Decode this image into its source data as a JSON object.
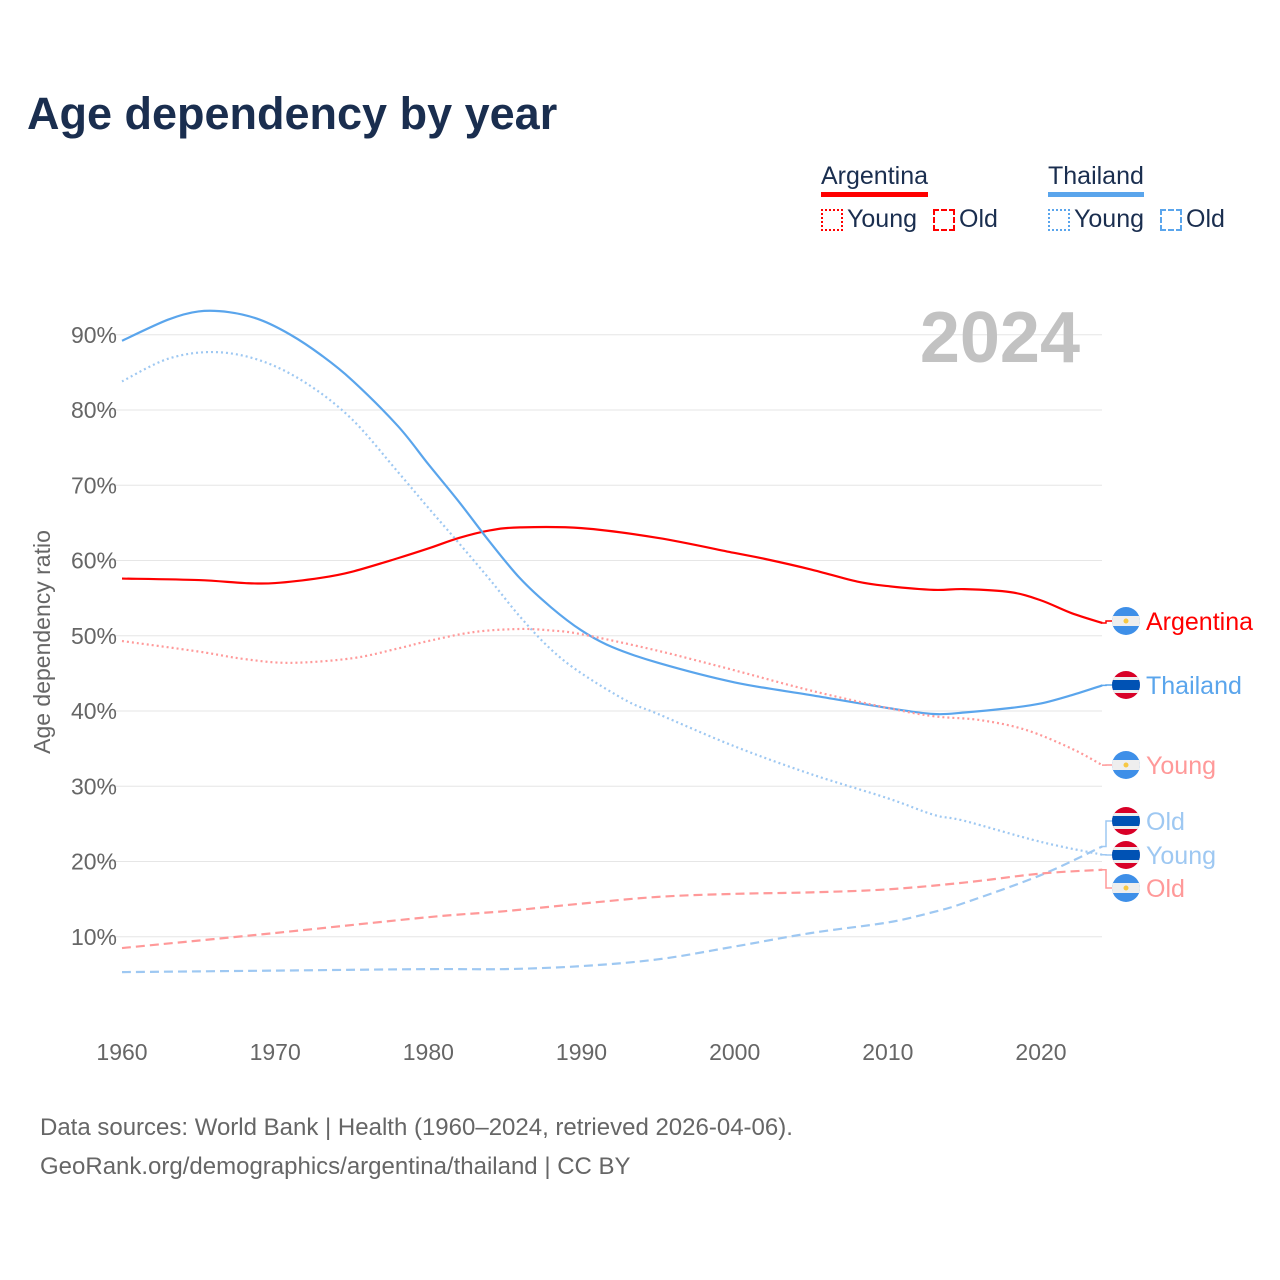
{
  "chart_data": {
    "type": "line",
    "title": "Age dependency by year",
    "ylabel": "Age dependency ratio",
    "xlabel": "",
    "year_display": "2024",
    "ylim": [
      0,
      100
    ],
    "xlim": [
      1960,
      2024
    ],
    "y_ticks": [
      "10%",
      "20%",
      "30%",
      "40%",
      "50%",
      "60%",
      "70%",
      "80%",
      "90%"
    ],
    "y_tick_values": [
      10,
      20,
      30,
      40,
      50,
      60,
      70,
      80,
      90
    ],
    "x_ticks": [
      "1960",
      "1970",
      "1980",
      "1990",
      "2000",
      "2010",
      "2020"
    ],
    "x_tick_values": [
      1960,
      1970,
      1980,
      1990,
      2000,
      2010,
      2020
    ],
    "legend": {
      "placement": "top-right",
      "groups": [
        {
          "name": "Argentina",
          "color": "#ff0000",
          "items": [
            "Young",
            "Old"
          ]
        },
        {
          "name": "Thailand",
          "color": "#5aa5ec",
          "items": [
            "Young",
            "Old"
          ]
        }
      ]
    },
    "series": [
      {
        "name": "Argentina",
        "label": "Argentina",
        "country": "Argentina",
        "style": "solid",
        "color": "#ff0000",
        "x": [
          1960,
          1965,
          1968,
          1970,
          1973,
          1975,
          1978,
          1980,
          1982,
          1984,
          1986,
          1990,
          1995,
          2000,
          2002,
          2005,
          2008,
          2010,
          2013,
          2015,
          2018,
          2020,
          2022,
          2024
        ],
        "y": [
          57.6,
          57.4,
          57.0,
          57.0,
          57.7,
          58.5,
          60.3,
          61.6,
          63.0,
          64.0,
          64.4,
          64.3,
          63.0,
          61.0,
          60.2,
          58.8,
          57.2,
          56.6,
          56.1,
          56.2,
          55.8,
          54.7,
          53.0,
          51.7
        ]
      },
      {
        "name": "Thailand",
        "label": "Thailand",
        "country": "Thailand",
        "style": "solid",
        "color": "#5aa5ec",
        "x": [
          1960,
          1963,
          1965,
          1967,
          1969,
          1971,
          1973,
          1975,
          1978,
          1980,
          1982,
          1984,
          1986,
          1988,
          1990,
          1992,
          1995,
          2000,
          2005,
          2010,
          2013,
          2015,
          2018,
          2020,
          2022,
          2024
        ],
        "y": [
          89.2,
          92.0,
          93.1,
          93.0,
          92.0,
          90.0,
          87.3,
          84.0,
          77.9,
          72.8,
          67.8,
          62.5,
          57.6,
          53.8,
          50.7,
          48.5,
          46.4,
          43.8,
          42.1,
          40.4,
          39.6,
          39.8,
          40.4,
          41.0,
          42.1,
          43.4
        ]
      },
      {
        "name": "Argentina Young",
        "label": "Young",
        "country": "Argentina",
        "style": "dotted",
        "color": "#ff9999",
        "x": [
          1960,
          1965,
          1968,
          1971,
          1975,
          1978,
          1980,
          1983,
          1986,
          1988,
          1990,
          1995,
          2000,
          2005,
          2010,
          2013,
          2016,
          2019,
          2022,
          2024
        ],
        "y": [
          49.3,
          47.9,
          46.9,
          46.4,
          47.0,
          48.3,
          49.3,
          50.5,
          50.9,
          50.7,
          50.2,
          48.0,
          45.4,
          42.7,
          40.4,
          39.3,
          38.8,
          37.5,
          35.0,
          32.8
        ]
      },
      {
        "name": "Thailand Old",
        "label": "Old",
        "country": "Thailand",
        "style": "dashed",
        "color": "#9ec8f2",
        "x": [
          1960,
          1970,
          1980,
          1985,
          1990,
          1995,
          2000,
          2005,
          2010,
          2013,
          2015,
          2020,
          2024
        ],
        "y": [
          5.3,
          5.5,
          5.7,
          5.7,
          6.1,
          7.0,
          8.7,
          10.5,
          11.9,
          13.3,
          14.5,
          18.2,
          22.0
        ]
      },
      {
        "name": "Thailand Young",
        "label": "Young",
        "country": "Thailand",
        "style": "dotted",
        "color": "#9ec8f2",
        "x": [
          1960,
          1963,
          1966,
          1969,
          1972,
          1975,
          1978,
          1980,
          1982,
          1984,
          1986,
          1988,
          1990,
          1993,
          1995,
          2000,
          2005,
          2010,
          2013,
          2015,
          2020,
          2024
        ],
        "y": [
          83.8,
          86.8,
          87.7,
          86.6,
          83.6,
          78.8,
          71.8,
          67.0,
          62.3,
          57.5,
          52.5,
          48.2,
          45.0,
          41.3,
          39.6,
          35.3,
          31.6,
          28.4,
          26.2,
          25.4,
          22.6,
          20.9
        ]
      },
      {
        "name": "Argentina Old",
        "label": "Old",
        "country": "Argentina",
        "style": "dashed",
        "color": "#ff9999",
        "x": [
          1960,
          1970,
          1980,
          1985,
          1990,
          1995,
          2000,
          2005,
          2010,
          2015,
          2020,
          2024
        ],
        "y": [
          8.5,
          10.5,
          12.6,
          13.4,
          14.4,
          15.3,
          15.7,
          15.9,
          16.3,
          17.2,
          18.4,
          18.9
        ]
      }
    ]
  },
  "source": {
    "line1": "Data sources: World Bank | Health (1960–2024, retrieved 2026-04-06).",
    "line2": "GeoRank.org/demographics/argentina/thailand | CC BY"
  }
}
